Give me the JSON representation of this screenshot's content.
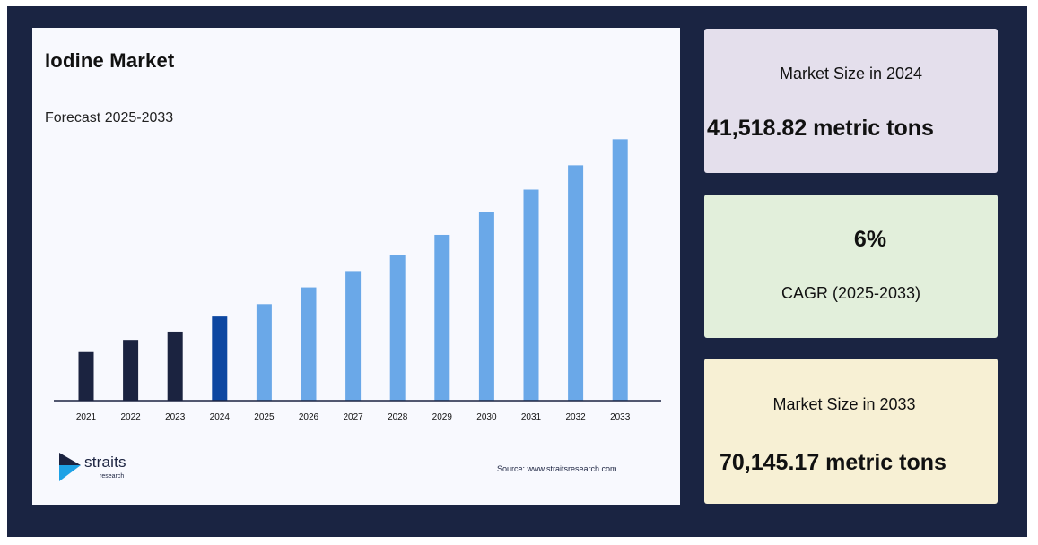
{
  "chart_data": {
    "type": "bar",
    "title": "Iodine Market",
    "subtitle": "Forecast 2025-2033",
    "categories": [
      "2021",
      "2022",
      "2023",
      "2024",
      "2025",
      "2026",
      "2027",
      "2028",
      "2029",
      "2030",
      "2031",
      "2032",
      "2033"
    ],
    "values": [
      20,
      25,
      28.4,
      34.6,
      39.7,
      46.6,
      53.3,
      60.0,
      68.2,
      77.5,
      86.8,
      96.8,
      107.5
    ],
    "bar_colors": [
      "#1b2340",
      "#1b2340",
      "#1b2340",
      "#0d47a1",
      "#6aa8e8",
      "#6aa8e8",
      "#6aa8e8",
      "#6aa8e8",
      "#6aa8e8",
      "#6aa8e8",
      "#6aa8e8",
      "#6aa8e8",
      "#6aa8e8"
    ],
    "ylim": [
      0,
      115
    ],
    "grid": false,
    "source": "Source: www.straitsresearch.com"
  },
  "logo": {
    "word": "straits",
    "sub": "research"
  },
  "stats": {
    "size_2024_label": "Market Size in 2024",
    "size_2024_value": "41,518.82 metric tons",
    "cagr_value": "6%",
    "cagr_label": "CAGR (2025-2033)",
    "size_2033_label": "Market Size in 2033",
    "size_2033_value": "70,145.17 metric tons"
  },
  "colors": {
    "background": "#1a2442",
    "historic_bar": "#1b2340",
    "base_year_bar": "#0d47a1",
    "forecast_bar": "#6aa8e8",
    "card_2024": "#e4dfec",
    "card_cagr": "#e2efdb",
    "card_2033": "#f7f0d4"
  }
}
